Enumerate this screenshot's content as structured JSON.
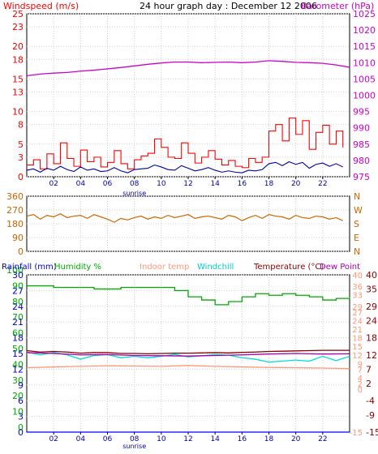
{
  "chart_data": [
    {
      "type": "line",
      "title": "24 hour graph day : December 12 2006",
      "left_axis_label": "Windspeed (m/s)",
      "right_axis_label": "Barometer (hPa)",
      "xticks": [
        "02",
        "04",
        "06",
        "08",
        "10",
        "12",
        "14",
        "16",
        "18",
        "20",
        "22"
      ],
      "xlim": [
        0,
        24
      ],
      "marker_label": "sunrise",
      "marker_hour": 8.0,
      "ylim": [
        0,
        25
      ],
      "yticks": [
        0,
        3,
        5,
        8,
        10,
        13,
        15,
        18,
        20,
        23,
        25
      ],
      "y2lim": [
        975,
        1025
      ],
      "y2ticks": [
        975,
        980,
        985,
        990,
        995,
        1000,
        1005,
        1010,
        1015,
        1020,
        1025
      ],
      "grid": true,
      "series": [
        {
          "name": "Windspeed (m/s)",
          "color": "#ff0000",
          "axis": "left",
          "x": [
            0,
            0.5,
            1,
            1.5,
            2,
            2.5,
            3,
            3.5,
            4,
            4.5,
            5,
            5.5,
            6,
            6.5,
            7,
            7.5,
            8,
            8.5,
            9,
            9.5,
            10,
            10.5,
            11,
            11.5,
            12,
            12.5,
            13,
            13.5,
            14,
            14.5,
            15,
            15.5,
            16,
            16.5,
            17,
            17.5,
            18,
            18.5,
            19,
            19.5,
            20,
            20.5,
            21,
            21.5,
            22,
            22.5,
            23,
            23.5
          ],
          "y": [
            1.8,
            2.6,
            1.2,
            3.5,
            2.0,
            5.2,
            2.8,
            1.6,
            4.1,
            2.3,
            3.0,
            1.5,
            2.2,
            4.0,
            2.0,
            1.2,
            2.6,
            3.2,
            3.6,
            5.8,
            4.5,
            3.0,
            2.8,
            5.2,
            3.6,
            2.1,
            3.0,
            4.0,
            2.7,
            1.8,
            2.5,
            1.6,
            1.4,
            2.8,
            2.2,
            3.0,
            7.0,
            8.0,
            5.5,
            9.0,
            6.5,
            8.6,
            4.2,
            6.8,
            7.9,
            5.0,
            7.0,
            4.5
          ]
        },
        {
          "name": "Windspeed avg",
          "color": "#0000aa",
          "axis": "left",
          "x": [
            0,
            0.5,
            1,
            1.5,
            2,
            2.5,
            3,
            3.5,
            4,
            4.5,
            5,
            5.5,
            6,
            6.5,
            7,
            7.5,
            8,
            8.5,
            9,
            9.5,
            10,
            10.5,
            11,
            11.5,
            12,
            12.5,
            13,
            13.5,
            14,
            14.5,
            15,
            15.5,
            16,
            16.5,
            17,
            17.5,
            18,
            18.5,
            19,
            19.5,
            20,
            20.5,
            21,
            21.5,
            22,
            22.5,
            23,
            23.5
          ],
          "y": [
            1.0,
            1.2,
            0.7,
            1.3,
            1.0,
            1.6,
            1.1,
            0.8,
            1.5,
            1.0,
            1.2,
            0.8,
            0.9,
            1.4,
            0.9,
            0.6,
            1.1,
            1.2,
            1.3,
            1.8,
            1.5,
            1.1,
            1.0,
            1.7,
            1.3,
            0.9,
            1.1,
            1.4,
            1.0,
            0.7,
            0.9,
            0.7,
            0.6,
            1.0,
            0.9,
            1.1,
            2.0,
            2.2,
            1.7,
            2.3,
            1.9,
            2.2,
            1.3,
            1.9,
            2.1,
            1.6,
            2.0,
            1.5
          ]
        },
        {
          "name": "Barometer (hPa)",
          "color": "#cc00cc",
          "axis": "right",
          "x": [
            0,
            1,
            2,
            3,
            4,
            5,
            6,
            7,
            8,
            9,
            10,
            11,
            12,
            13,
            14,
            15,
            16,
            17,
            18,
            19,
            20,
            21,
            22,
            23,
            24
          ],
          "y": [
            1006.0,
            1006.5,
            1006.8,
            1007.0,
            1007.4,
            1007.7,
            1008.1,
            1008.5,
            1009.0,
            1009.5,
            1009.9,
            1010.2,
            1010.2,
            1010.0,
            1010.1,
            1010.2,
            1010.0,
            1010.2,
            1010.6,
            1010.4,
            1010.1,
            1010.0,
            1009.8,
            1009.3,
            1008.6
          ]
        }
      ]
    },
    {
      "type": "line",
      "right_axis_labels": [
        "N",
        "W",
        "S",
        "E",
        "N"
      ],
      "ylim": [
        0,
        360
      ],
      "yticks": [
        0,
        90,
        180,
        270,
        360
      ],
      "xlim": [
        0,
        24
      ],
      "grid": true,
      "series": [
        {
          "name": "Wind direction",
          "color": "#cc6600",
          "x": [
            0,
            0.5,
            1,
            1.5,
            2,
            2.5,
            3,
            3.5,
            4,
            4.5,
            5,
            5.5,
            6,
            6.5,
            7,
            7.5,
            8,
            8.5,
            9,
            9.5,
            10,
            10.5,
            11,
            11.5,
            12,
            12.5,
            13,
            13.5,
            14,
            14.5,
            15,
            15.5,
            16,
            16.5,
            17,
            17.5,
            18,
            18.5,
            19,
            19.5,
            20,
            20.5,
            21,
            21.5,
            22,
            22.5,
            23,
            23.5
          ],
          "y": [
            230,
            240,
            210,
            235,
            225,
            245,
            220,
            230,
            235,
            215,
            240,
            225,
            210,
            190,
            215,
            205,
            220,
            230,
            210,
            225,
            215,
            235,
            220,
            230,
            240,
            215,
            225,
            230,
            220,
            210,
            235,
            225,
            200,
            220,
            235,
            215,
            240,
            230,
            225,
            210,
            235,
            220,
            215,
            230,
            225,
            210,
            220,
            200
          ]
        }
      ]
    },
    {
      "type": "line",
      "labels": {
        "rainfall": "Rainfall (mm)",
        "humidity": "Humidity %",
        "indoor": "Indoor temp",
        "windchill": "Windchill",
        "temperature": "Temperature (°C)",
        "dewpoint": "Dew Point"
      },
      "xticks": [
        "02",
        "04",
        "06",
        "08",
        "10",
        "12",
        "14",
        "16",
        "18",
        "20",
        "22"
      ],
      "xlim": [
        0,
        24
      ],
      "marker_label": "sunrise",
      "marker_hour": 8.0,
      "grid": true,
      "rain_axis": {
        "ylim": [
          0,
          30
        ],
        "yticks": [
          0,
          3,
          6,
          9,
          12,
          15,
          18,
          21,
          24,
          27,
          30
        ]
      },
      "humidity_axis": {
        "ylim": [
          0,
          100
        ],
        "yticks": [
          0,
          10,
          20,
          30,
          40,
          50,
          60,
          70,
          80,
          90,
          100
        ]
      },
      "temp_left_axis": {
        "ylim": [
          -15,
          40
        ],
        "yticks": [
          -15,
          0,
          2,
          4,
          7,
          9,
          12,
          15,
          18,
          21,
          24,
          27,
          29,
          33,
          36,
          40
        ]
      },
      "temp_right_axis": {
        "ylim": [
          -15,
          40
        ],
        "yticks": [
          -15,
          -9,
          -4,
          2,
          7,
          12,
          18,
          24,
          29,
          35,
          40
        ]
      },
      "series": [
        {
          "name": "Humidity %",
          "color": "#00aa00",
          "axis": "humidity",
          "x": [
            0,
            1,
            2,
            3,
            4,
            5,
            6,
            7,
            8,
            9,
            10,
            11,
            12,
            13,
            14,
            15,
            16,
            17,
            18,
            19,
            20,
            21,
            22,
            23,
            24
          ],
          "y": [
            93,
            93,
            92,
            92,
            92,
            91,
            91,
            92,
            92,
            92,
            92,
            90,
            86,
            84,
            81,
            83,
            86,
            88,
            87,
            88,
            87,
            86,
            84,
            85,
            86
          ]
        },
        {
          "name": "Indoor temp",
          "color": "#ff9977",
          "axis": "temp",
          "x": [
            0,
            2,
            4,
            6,
            8,
            10,
            12,
            14,
            16,
            18,
            20,
            22,
            24
          ],
          "y": [
            7.5,
            7.8,
            8.0,
            8.2,
            8.1,
            8.0,
            8.3,
            8.0,
            7.8,
            7.6,
            7.5,
            7.4,
            7.2
          ]
        },
        {
          "name": "Windchill",
          "color": "#00dddd",
          "axis": "temp",
          "x": [
            0,
            1,
            2,
            3,
            4,
            5,
            6,
            7,
            8,
            9,
            10,
            11,
            12,
            13,
            14,
            15,
            16,
            17,
            18,
            19,
            20,
            21,
            22,
            23,
            24
          ],
          "y": [
            13.0,
            12.0,
            12.8,
            12.0,
            10.5,
            11.8,
            12.1,
            11.0,
            11.5,
            11.0,
            11.5,
            12.2,
            11.3,
            11.7,
            12.1,
            11.9,
            11.0,
            10.5,
            9.5,
            9.8,
            10.2,
            9.8,
            11.5,
            10.0,
            11.5
          ]
        },
        {
          "name": "Temperature (°C)",
          "color": "#880000",
          "axis": "temp",
          "x": [
            0,
            1,
            2,
            3,
            4,
            5,
            6,
            7,
            8,
            9,
            10,
            11,
            12,
            13,
            14,
            15,
            16,
            17,
            18,
            19,
            20,
            21,
            22,
            23,
            24
          ],
          "y": [
            13.5,
            13.0,
            13.2,
            13.0,
            12.6,
            12.8,
            12.8,
            12.5,
            12.5,
            12.4,
            12.5,
            12.6,
            12.6,
            12.7,
            12.8,
            12.7,
            12.9,
            13.0,
            13.2,
            13.3,
            13.4,
            13.5,
            13.6,
            13.6,
            13.6
          ]
        },
        {
          "name": "Dew Point",
          "color": "#aa00aa",
          "axis": "temp",
          "x": [
            0,
            2,
            4,
            6,
            8,
            10,
            12,
            14,
            16,
            18,
            20,
            22,
            24
          ],
          "y": [
            12.8,
            12.5,
            12.0,
            12.1,
            11.8,
            11.7,
            11.6,
            11.8,
            12.0,
            12.3,
            12.5,
            12.3,
            12.4
          ]
        },
        {
          "name": "Rainfall (mm)",
          "color": "#0000ff",
          "axis": "rain",
          "x": [
            0,
            24
          ],
          "y": [
            0,
            0
          ]
        }
      ]
    }
  ]
}
